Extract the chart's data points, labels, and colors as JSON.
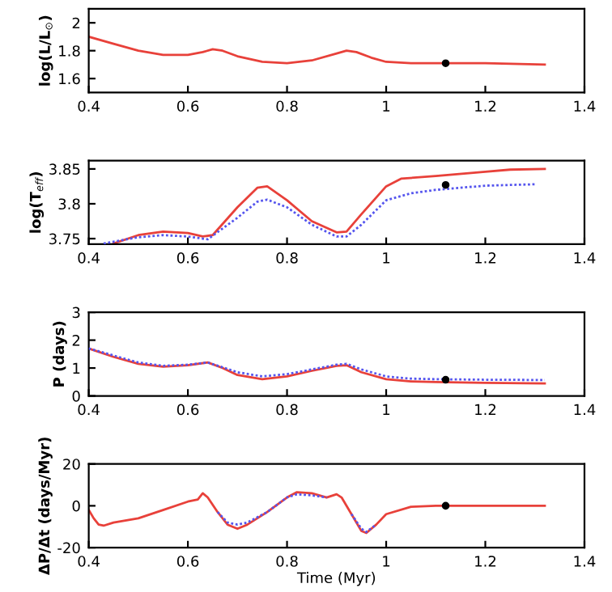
{
  "chart_data": [
    {
      "type": "line",
      "ylabel": "log(L/L$_{⊙}$)",
      "xlim": [
        0.4,
        1.4
      ],
      "xticks": [
        0.4,
        0.6,
        0.8,
        1,
        1.2,
        1.4
      ],
      "ylim": [
        1.5,
        2.1
      ],
      "yticks": [
        1.6,
        1.8,
        2
      ],
      "grid": false,
      "legend": false,
      "series": [
        {
          "color": "#e8413a",
          "line_style": "solid",
          "x": [
            0.4,
            0.45,
            0.5,
            0.55,
            0.6,
            0.63,
            0.65,
            0.67,
            0.7,
            0.75,
            0.8,
            0.85,
            0.9,
            0.92,
            0.94,
            0.97,
            1.0,
            1.05,
            1.1,
            1.2,
            1.32
          ],
          "values": [
            1.9,
            1.85,
            1.8,
            1.77,
            1.77,
            1.79,
            1.81,
            1.8,
            1.76,
            1.72,
            1.71,
            1.73,
            1.78,
            1.8,
            1.79,
            1.75,
            1.72,
            1.71,
            1.71,
            1.71,
            1.7
          ]
        },
        {
          "type": "scatter",
          "color": "#000000",
          "x": [
            1.12
          ],
          "values": [
            1.71
          ]
        }
      ]
    },
    {
      "type": "line",
      "ylabel": "log(T$_{eff}$)",
      "xlim": [
        0.4,
        1.4
      ],
      "xticks": [
        0.4,
        0.6,
        0.8,
        1,
        1.2,
        1.4
      ],
      "ylim": [
        3.742,
        3.862
      ],
      "yticks": [
        3.75,
        3.8,
        3.85
      ],
      "grid": false,
      "legend": false,
      "series": [
        {
          "color": "#5555ee",
          "line_style": "dotted",
          "x": [
            0.43,
            0.5,
            0.55,
            0.6,
            0.64,
            0.7,
            0.74,
            0.76,
            0.8,
            0.85,
            0.9,
            0.92,
            0.95,
            1.0,
            1.05,
            1.1,
            1.2,
            1.3
          ],
          "values": [
            3.743,
            3.752,
            3.755,
            3.753,
            3.749,
            3.78,
            3.803,
            3.806,
            3.795,
            3.77,
            3.753,
            3.753,
            3.77,
            3.805,
            3.815,
            3.82,
            3.826,
            3.828
          ]
        },
        {
          "color": "#e8413a",
          "line_style": "solid",
          "x": [
            0.45,
            0.5,
            0.55,
            0.6,
            0.63,
            0.65,
            0.7,
            0.74,
            0.76,
            0.8,
            0.85,
            0.9,
            0.92,
            0.95,
            1.0,
            1.03,
            1.1,
            1.2,
            1.25,
            1.32
          ],
          "values": [
            3.743,
            3.755,
            3.76,
            3.758,
            3.753,
            3.755,
            3.795,
            3.823,
            3.825,
            3.805,
            3.775,
            3.759,
            3.76,
            3.785,
            3.825,
            3.836,
            3.84,
            3.846,
            3.849,
            3.85
          ]
        },
        {
          "type": "scatter",
          "color": "#000000",
          "x": [
            1.12
          ],
          "values": [
            3.827
          ]
        }
      ]
    },
    {
      "type": "line",
      "ylabel": "P (days)",
      "xlim": [
        0.4,
        1.4
      ],
      "xticks": [
        0.4,
        0.6,
        0.8,
        1,
        1.2,
        1.4
      ],
      "ylim": [
        0,
        3
      ],
      "yticks": [
        0,
        1,
        2,
        3
      ],
      "grid": false,
      "legend": false,
      "series": [
        {
          "color": "#5555ee",
          "line_style": "dotted",
          "x": [
            0.4,
            0.5,
            0.55,
            0.6,
            0.64,
            0.7,
            0.75,
            0.8,
            0.85,
            0.9,
            0.92,
            0.95,
            1.0,
            1.05,
            1.1,
            1.2,
            1.32
          ],
          "values": [
            1.7,
            1.2,
            1.08,
            1.12,
            1.2,
            0.85,
            0.7,
            0.78,
            0.95,
            1.12,
            1.15,
            0.95,
            0.7,
            0.62,
            0.6,
            0.58,
            0.57
          ]
        },
        {
          "color": "#e8413a",
          "line_style": "solid",
          "x": [
            0.4,
            0.45,
            0.5,
            0.55,
            0.6,
            0.64,
            0.67,
            0.7,
            0.75,
            0.8,
            0.85,
            0.9,
            0.92,
            0.95,
            1.0,
            1.05,
            1.1,
            1.2,
            1.32
          ],
          "values": [
            1.7,
            1.4,
            1.15,
            1.05,
            1.1,
            1.2,
            1.0,
            0.75,
            0.6,
            0.7,
            0.9,
            1.08,
            1.1,
            0.85,
            0.6,
            0.52,
            0.5,
            0.47,
            0.45
          ]
        },
        {
          "type": "scatter",
          "color": "#000000",
          "x": [
            1.12
          ],
          "values": [
            0.58
          ]
        }
      ]
    },
    {
      "type": "line",
      "xlabel": "Time (Myr)",
      "ylabel": "ΔP/Δt (days/Myr)",
      "xlim": [
        0.4,
        1.4
      ],
      "xticks": [
        0.4,
        0.6,
        0.8,
        1,
        1.2,
        1.4
      ],
      "ylim": [
        -20,
        20
      ],
      "yticks": [
        -20,
        0,
        20
      ],
      "grid": false,
      "legend": false,
      "series": [
        {
          "color": "#5555ee",
          "line_style": "dotted",
          "x": [
            0.66,
            0.68,
            0.7,
            0.72,
            0.76,
            0.8,
            0.82,
            0.85,
            0.88
          ],
          "values": [
            -3,
            -8,
            -9,
            -8,
            -3,
            4,
            5.5,
            5,
            4
          ]
        },
        {
          "color": "#5555ee",
          "line_style": "dotted",
          "x": [
            0.93,
            0.95,
            0.96,
            0.98
          ],
          "values": [
            -4,
            -11,
            -12.5,
            -9
          ]
        },
        {
          "color": "#e8413a",
          "line_style": "solid",
          "x": [
            0.4,
            0.41,
            0.42,
            0.43,
            0.45,
            0.5,
            0.55,
            0.6,
            0.62,
            0.63,
            0.64,
            0.66,
            0.68,
            0.7,
            0.72,
            0.76,
            0.8,
            0.82,
            0.85,
            0.88,
            0.9,
            0.91,
            0.93,
            0.95,
            0.96,
            0.98,
            1.0,
            1.05,
            1.1,
            1.32
          ],
          "values": [
            -2,
            -6,
            -9,
            -9.5,
            -8,
            -6,
            -2,
            2,
            3,
            6,
            4,
            -3,
            -9,
            -11,
            -9,
            -3,
            4,
            6.5,
            6,
            4,
            5.5,
            4,
            -4,
            -12,
            -13,
            -9,
            -4,
            -0.5,
            0,
            0
          ]
        },
        {
          "type": "scatter",
          "color": "#000000",
          "x": [
            1.12
          ],
          "values": [
            0
          ]
        }
      ]
    }
  ]
}
